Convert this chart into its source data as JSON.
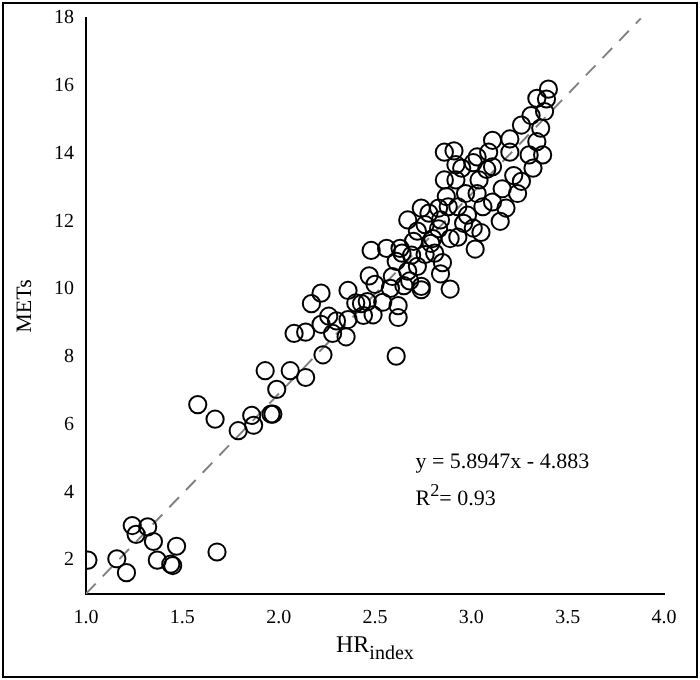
{
  "chart_data": {
    "type": "scatter",
    "xlabel": "HR$_{index}$",
    "ylabel": "METs",
    "xlim": [
      1,
      4
    ],
    "ylim": [
      1,
      18
    ],
    "xticks": [
      {
        "value": 1,
        "label": "1.0"
      },
      {
        "value": 1.5,
        "label": "1.5"
      },
      {
        "value": 2,
        "label": "2.0"
      },
      {
        "value": 2.5,
        "label": "2.5"
      },
      {
        "value": 3,
        "label": "3.0"
      },
      {
        "value": 3.5,
        "label": "3.5"
      },
      {
        "value": 4,
        "label": "4.0"
      }
    ],
    "yticks": [
      2,
      4,
      6,
      8,
      10,
      12,
      14,
      16,
      18
    ],
    "grid": false,
    "legend": false,
    "marker": "circle",
    "annotations": [
      "y = 5.8947x - 4.883",
      "R$^{2}$= 0.93"
    ],
    "series": [
      {
        "color": "#000000",
        "x": [
          1.01,
          1.16,
          1.21,
          1.24,
          1.26,
          1.32,
          1.35,
          1.37,
          1.47,
          1.44,
          1.45,
          1.68,
          1.58,
          1.67,
          1.79,
          1.86,
          1.87,
          1.96,
          1.97,
          1.93,
          1.99,
          2.06,
          2.14,
          2.08,
          2.14,
          2.23,
          2.17,
          2.22,
          2.22,
          2.26,
          2.28,
          2.3,
          2.35,
          2.36,
          2.36,
          2.4,
          2.43,
          2.44,
          2.46,
          2.47,
          2.48,
          2.5,
          2.49,
          2.54,
          2.56,
          2.58,
          2.59,
          2.61,
          2.61,
          2.62,
          2.62,
          2.63,
          2.65,
          2.67,
          2.69,
          2.7,
          2.72,
          2.72,
          2.74,
          2.74,
          2.76,
          2.78,
          2.8,
          2.81,
          2.83,
          2.84,
          2.85,
          2.86,
          2.86,
          2.88,
          2.89,
          2.89,
          2.91,
          2.92,
          2.92,
          2.93,
          2.93,
          2.95,
          2.97,
          2.98,
          3.01,
          3.02,
          3.01,
          3.03,
          3.03,
          3.04,
          3.05,
          3.06,
          3.08,
          3.09,
          3.11,
          3.11,
          3.11,
          3.15,
          3.16,
          3.18,
          3.2,
          3.2,
          3.22,
          3.24,
          3.26,
          3.26,
          3.3,
          3.32,
          3.31,
          3.34,
          3.34,
          3.36,
          3.37,
          3.38,
          3.39,
          3.4,
          2.67,
          2.74,
          2.76,
          2.83,
          2.84,
          2.87,
          2.96,
          2.79,
          2.64,
          2.68
        ],
        "values": [
          2.0,
          2.04,
          1.63,
          3.02,
          2.76,
          2.98,
          2.55,
          2.0,
          2.41,
          1.88,
          1.84,
          2.24,
          6.59,
          6.16,
          5.82,
          6.27,
          5.98,
          6.31,
          6.31,
          7.59,
          7.04,
          7.59,
          7.39,
          8.69,
          8.73,
          8.06,
          9.57,
          9.88,
          8.96,
          9.2,
          8.69,
          9.06,
          8.59,
          9.1,
          9.96,
          9.59,
          9.57,
          9.22,
          9.63,
          10.39,
          11.14,
          10.14,
          9.24,
          9.61,
          11.2,
          10.02,
          10.37,
          10.82,
          8.02,
          9.51,
          9.16,
          11.2,
          10.1,
          10.53,
          11.0,
          11.41,
          11.71,
          10.67,
          10.08,
          9.98,
          11.02,
          12.24,
          11.49,
          11.06,
          11.78,
          10.45,
          10.78,
          13.22,
          14.04,
          12.43,
          11.49,
          10.0,
          14.08,
          13.67,
          13.22,
          12.43,
          11.53,
          13.57,
          12.82,
          12.18,
          11.8,
          11.18,
          13.73,
          13.9,
          12.82,
          13.22,
          11.67,
          12.43,
          13.53,
          14.04,
          13.61,
          14.39,
          12.57,
          12.0,
          12.96,
          12.39,
          14.04,
          14.43,
          13.35,
          12.82,
          13.18,
          14.84,
          13.96,
          13.57,
          15.12,
          15.63,
          14.35,
          14.75,
          13.96,
          15.24,
          15.61,
          15.9,
          12.04,
          12.39,
          11.9,
          12.39,
          12.04,
          12.73,
          11.94,
          11.35,
          11.06,
          10.24
        ]
      },
      {
        "type": "line",
        "color": "#808080",
        "line_style": "dashed",
        "marker": "none",
        "x": [
          1.0,
          3.88
        ],
        "values": [
          1.01,
          17.99
        ]
      }
    ]
  }
}
